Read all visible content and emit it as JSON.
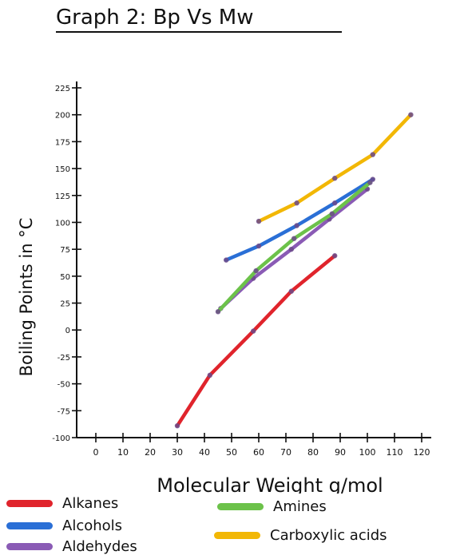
{
  "chart_data": {
    "type": "line",
    "title": "Graph 2: Bp Vs Mw",
    "xlabel": "Molecular Weight g/mol",
    "ylabel": "Boiling Points in °C",
    "xlim": [
      0,
      120
    ],
    "ylim": [
      -100,
      225
    ],
    "x_ticks": [
      "0",
      "10",
      "20",
      "30",
      "40",
      "50",
      "60",
      "70",
      "80",
      "90",
      "100",
      "110",
      "120"
    ],
    "y_ticks": [
      "-100",
      "-75",
      "-50",
      "-25",
      "0",
      "25",
      "50",
      "75",
      "100",
      "125",
      "150",
      "175",
      "200",
      "225"
    ],
    "grid": false,
    "legend": "bottom",
    "series": [
      {
        "name": "Alkanes",
        "color": "#e0242c",
        "x": [
          30,
          42,
          58,
          72,
          88
        ],
        "y": [
          -89,
          -42,
          -1,
          36,
          69
        ]
      },
      {
        "name": "Alcohols",
        "color": "#2a6fd6",
        "x": [
          48,
          60,
          74,
          88,
          102
        ],
        "y": [
          65,
          78,
          97,
          118,
          140
        ]
      },
      {
        "name": "Aldehydes",
        "color": "#8a5bb5",
        "x": [
          46,
          58,
          72,
          86,
          100
        ],
        "y": [
          20,
          48,
          75,
          103,
          131
        ]
      },
      {
        "name": "Amines",
        "color": "#6cc24a",
        "x": [
          45,
          59,
          73,
          87,
          101
        ],
        "y": [
          17,
          55,
          85,
          108,
          137
        ]
      },
      {
        "name": "Carboxylic acids",
        "color": "#f2b705",
        "x": [
          60,
          74,
          88,
          102,
          116
        ],
        "y": [
          101,
          118,
          141,
          163,
          200
        ]
      }
    ]
  }
}
